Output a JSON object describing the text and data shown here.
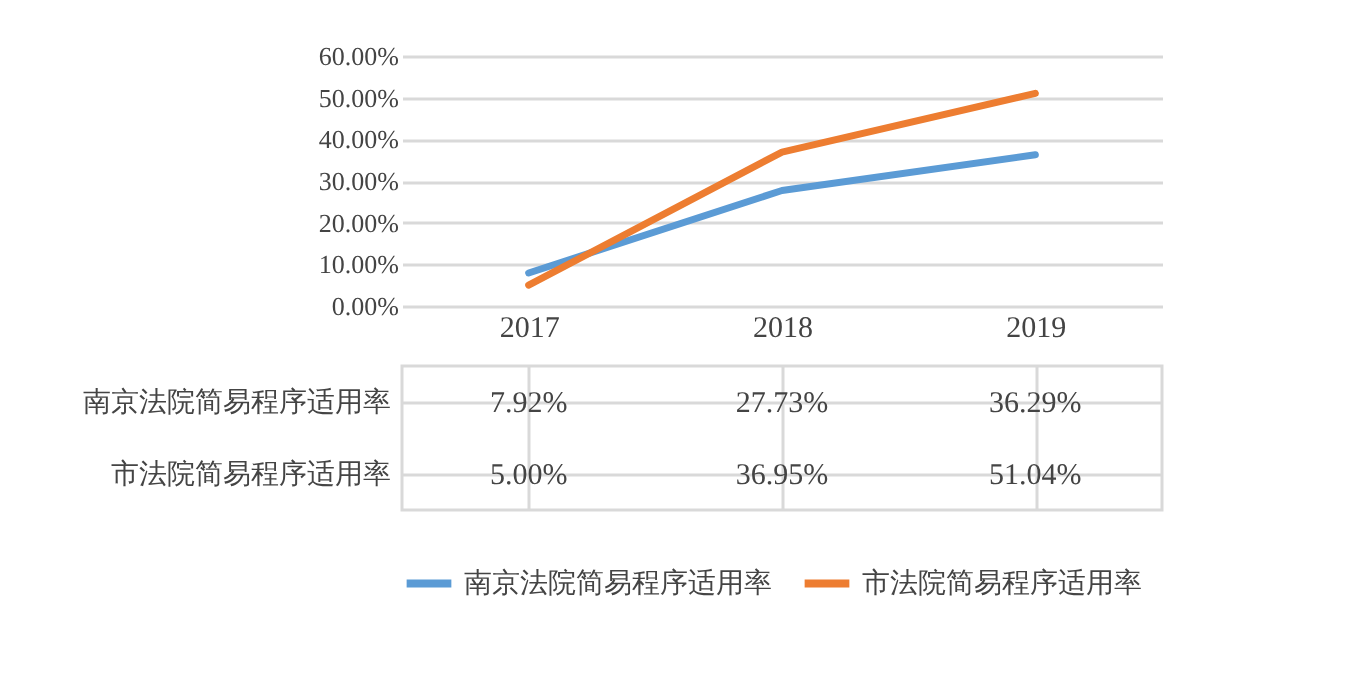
{
  "chart_data": {
    "type": "line",
    "categories": [
      "2017",
      "2018",
      "2019"
    ],
    "series": [
      {
        "name": "南京法院简易程序适用率",
        "color": "#5b9bd5",
        "values": [
          7.92,
          27.73,
          36.29
        ],
        "value_labels": [
          "7.92%",
          "27.73%",
          "36.29%"
        ]
      },
      {
        "name": "市法院简易程序适用率",
        "color": "#ed7d31",
        "values": [
          5.0,
          36.95,
          51.04
        ],
        "value_labels": [
          "5.00%",
          "36.95%",
          "51.04%"
        ]
      }
    ],
    "ylim": [
      0,
      60
    ],
    "yticks": [
      {
        "value": 0,
        "label": "0.00%"
      },
      {
        "value": 10,
        "label": "10.00%"
      },
      {
        "value": 20,
        "label": "20.00%"
      },
      {
        "value": 30,
        "label": "30.00%"
      },
      {
        "value": 40,
        "label": "40.00%"
      },
      {
        "value": 50,
        "label": "50.00%"
      },
      {
        "value": 60,
        "label": "60.00%"
      }
    ],
    "grid": "y",
    "legend": "bottom"
  }
}
